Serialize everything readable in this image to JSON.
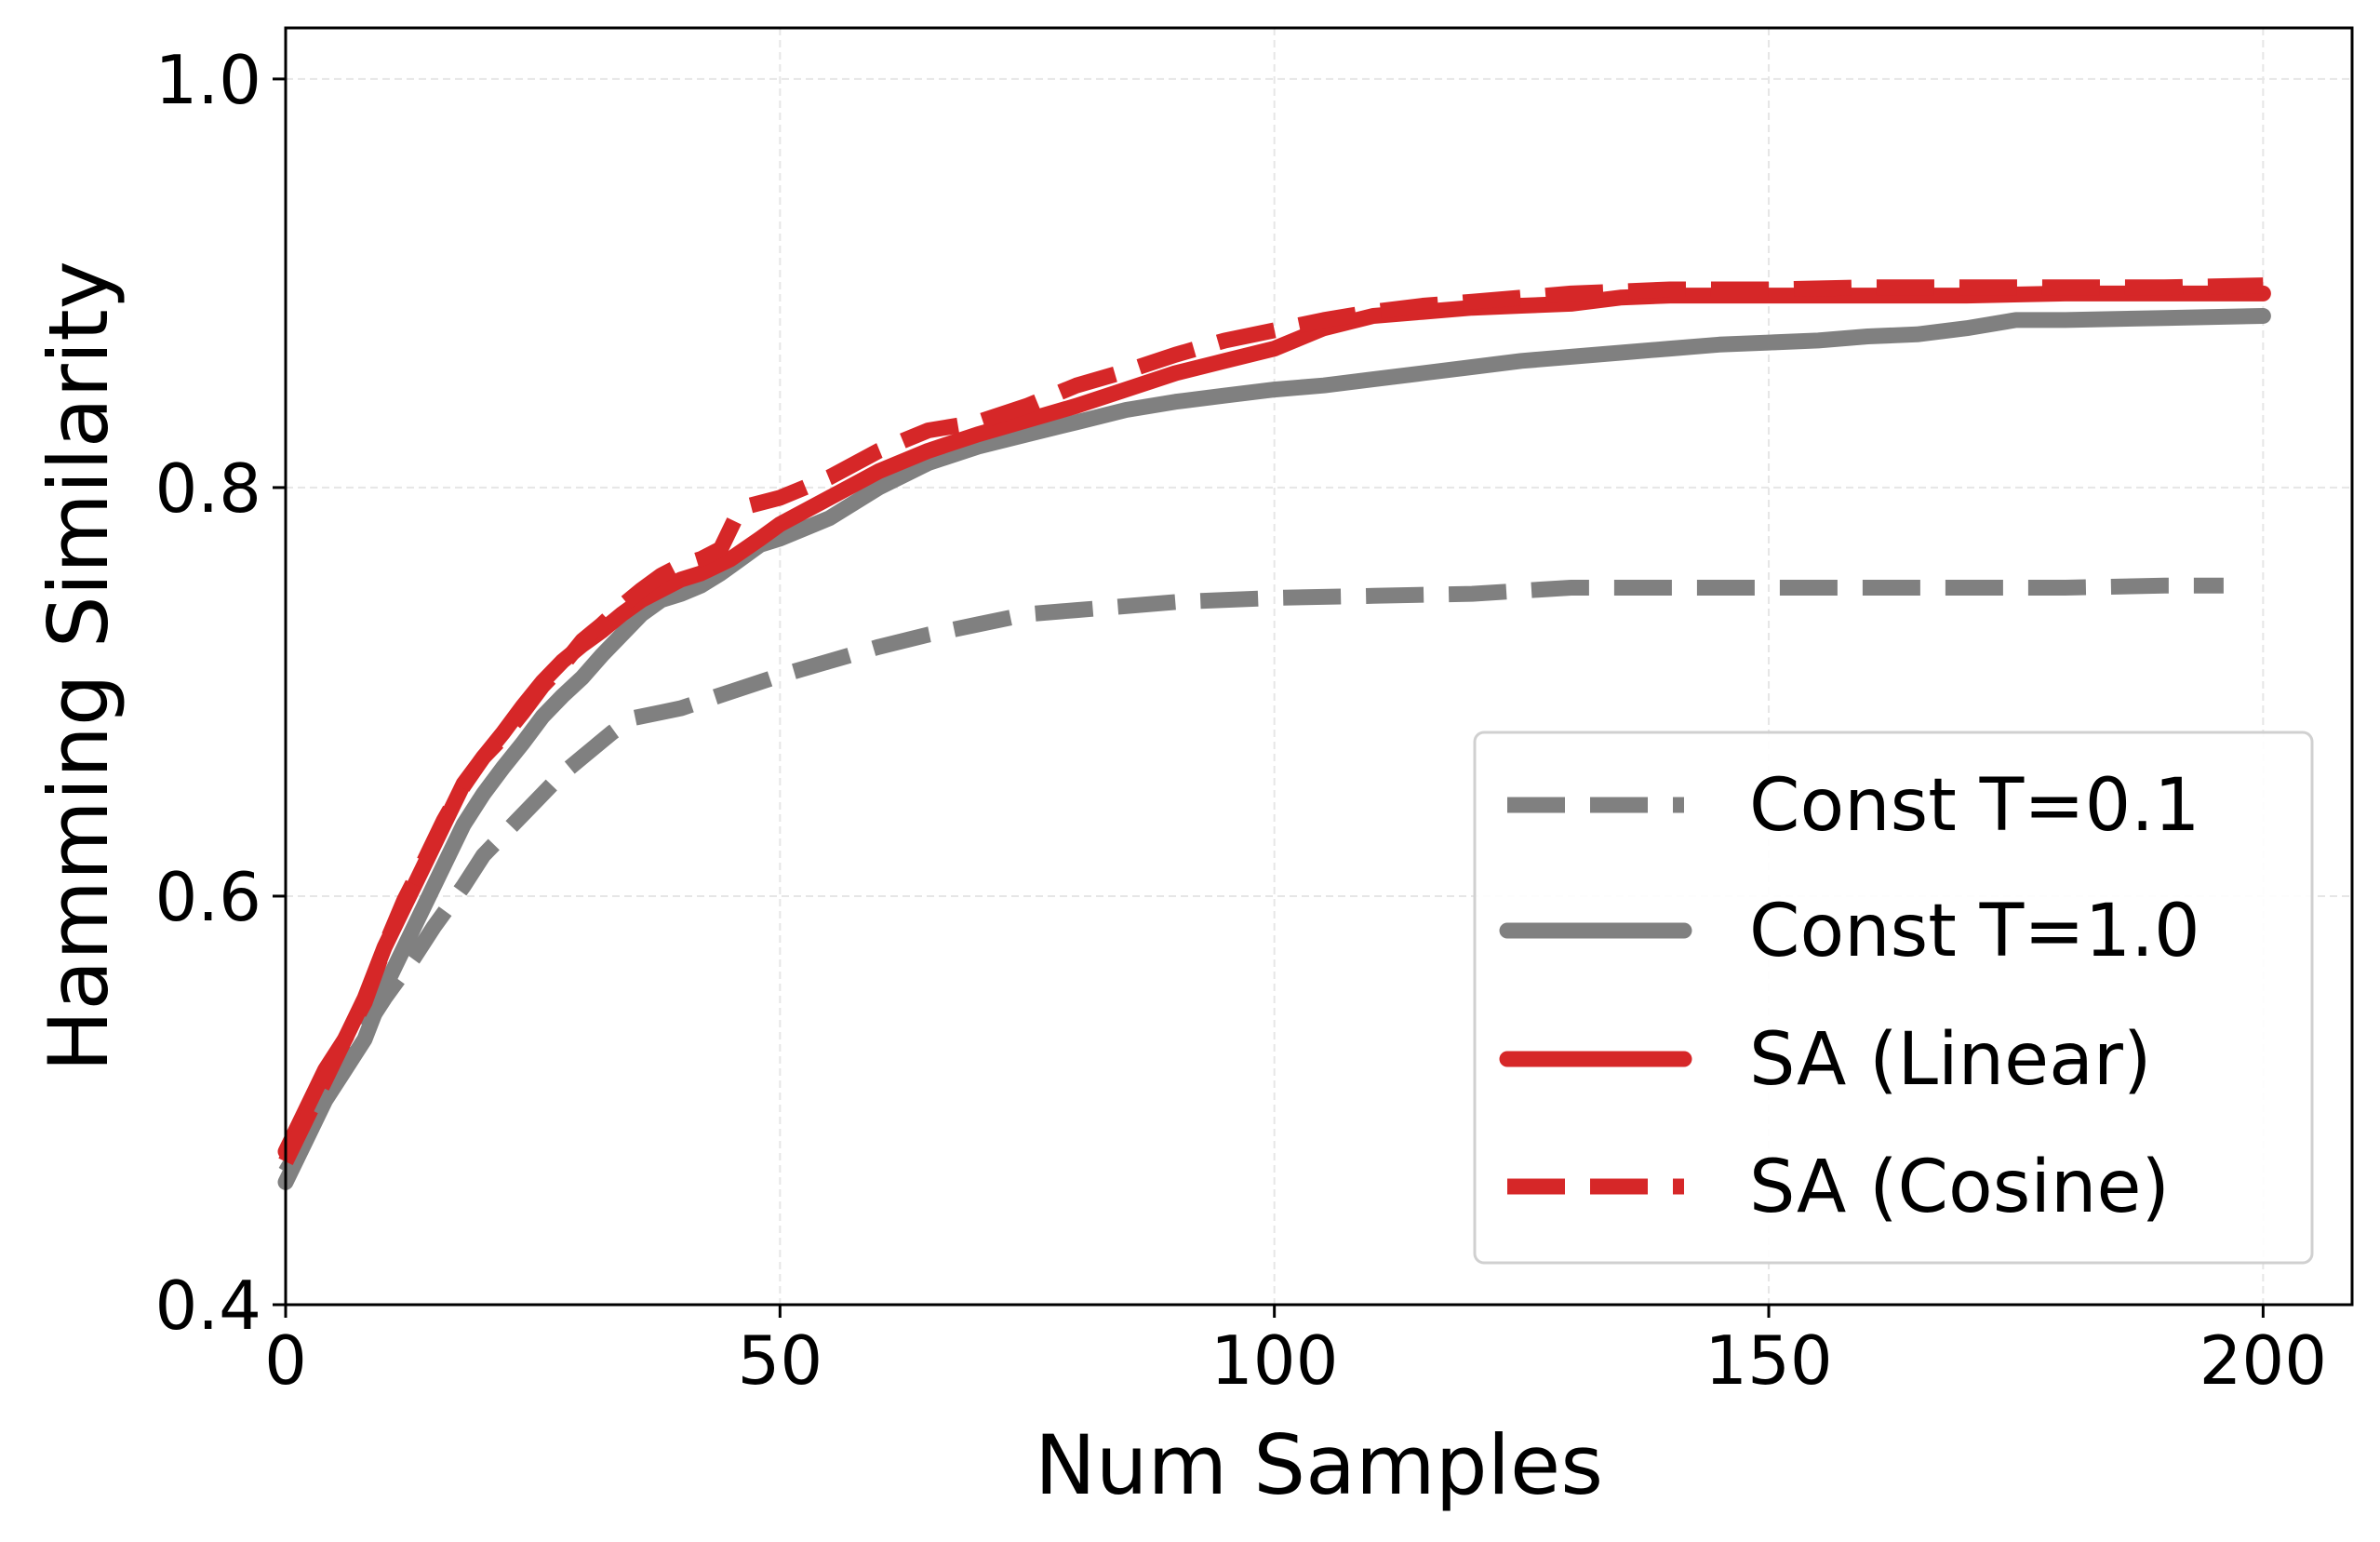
{
  "colors": {
    "gray": "#808080",
    "red": "#d62728",
    "grid": "#e6e6e6",
    "axis": "#000000",
    "legend_border": "#d0d0d0"
  },
  "chart_data": {
    "type": "line",
    "title": "",
    "xlabel": "Num Samples",
    "ylabel": "Hamming Similarity",
    "xlim": [
      0,
      209
    ],
    "ylim": [
      0.4,
      1.025
    ],
    "xticks": [
      0,
      50,
      100,
      150,
      200
    ],
    "xtick_labels": [
      "0",
      "50",
      "100",
      "150",
      "200"
    ],
    "yticks": [
      0.4,
      0.6,
      0.8,
      1.0
    ],
    "ytick_labels": [
      "0.4",
      "0.6",
      "0.8",
      "1.0"
    ],
    "grid": true,
    "legend_position": "lower-right",
    "series": [
      {
        "name": "Const T=0.1",
        "color": "gray",
        "style": "dashed",
        "points": [
          [
            0,
            0.465
          ],
          [
            3,
            0.49
          ],
          [
            5,
            0.51
          ],
          [
            8,
            0.535
          ],
          [
            10,
            0.55
          ],
          [
            13,
            0.57
          ],
          [
            15,
            0.585
          ],
          [
            18,
            0.605
          ],
          [
            20,
            0.62
          ],
          [
            23,
            0.635
          ],
          [
            25,
            0.645
          ],
          [
            28,
            0.66
          ],
          [
            30,
            0.668
          ],
          [
            33,
            0.68
          ],
          [
            35,
            0.687
          ],
          [
            38,
            0.69
          ],
          [
            40,
            0.692
          ],
          [
            45,
            0.7
          ],
          [
            50,
            0.708
          ],
          [
            55,
            0.715
          ],
          [
            60,
            0.722
          ],
          [
            65,
            0.728
          ],
          [
            70,
            0.733
          ],
          [
            75,
            0.738
          ],
          [
            80,
            0.74
          ],
          [
            90,
            0.744
          ],
          [
            100,
            0.746
          ],
          [
            110,
            0.747
          ],
          [
            120,
            0.748
          ],
          [
            130,
            0.751
          ],
          [
            140,
            0.751
          ],
          [
            150,
            0.751
          ],
          [
            160,
            0.751
          ],
          [
            170,
            0.751
          ],
          [
            180,
            0.751
          ],
          [
            190,
            0.752
          ],
          [
            196,
            0.752
          ]
        ]
      },
      {
        "name": "Const T=1.0",
        "color": "gray",
        "style": "solid",
        "points": [
          [
            0,
            0.46
          ],
          [
            2,
            0.48
          ],
          [
            4,
            0.5
          ],
          [
            6,
            0.515
          ],
          [
            8,
            0.53
          ],
          [
            10,
            0.555
          ],
          [
            12,
            0.575
          ],
          [
            14,
            0.595
          ],
          [
            16,
            0.615
          ],
          [
            18,
            0.635
          ],
          [
            20,
            0.65
          ],
          [
            22,
            0.663
          ],
          [
            24,
            0.675
          ],
          [
            26,
            0.688
          ],
          [
            28,
            0.698
          ],
          [
            30,
            0.707
          ],
          [
            32,
            0.718
          ],
          [
            34,
            0.728
          ],
          [
            36,
            0.738
          ],
          [
            38,
            0.745
          ],
          [
            40,
            0.748
          ],
          [
            42,
            0.752
          ],
          [
            44,
            0.758
          ],
          [
            46,
            0.765
          ],
          [
            48,
            0.772
          ],
          [
            50,
            0.775
          ],
          [
            55,
            0.785
          ],
          [
            60,
            0.8
          ],
          [
            65,
            0.812
          ],
          [
            70,
            0.82
          ],
          [
            75,
            0.826
          ],
          [
            80,
            0.832
          ],
          [
            85,
            0.838
          ],
          [
            90,
            0.842
          ],
          [
            95,
            0.845
          ],
          [
            100,
            0.848
          ],
          [
            105,
            0.85
          ],
          [
            110,
            0.853
          ],
          [
            115,
            0.856
          ],
          [
            120,
            0.859
          ],
          [
            125,
            0.862
          ],
          [
            130,
            0.864
          ],
          [
            135,
            0.866
          ],
          [
            140,
            0.868
          ],
          [
            145,
            0.87
          ],
          [
            150,
            0.871
          ],
          [
            155,
            0.872
          ],
          [
            160,
            0.874
          ],
          [
            165,
            0.875
          ],
          [
            170,
            0.878
          ],
          [
            175,
            0.882
          ],
          [
            180,
            0.882
          ],
          [
            190,
            0.883
          ],
          [
            200,
            0.884
          ]
        ]
      },
      {
        "name": "SA (Linear)",
        "color": "red",
        "style": "solid",
        "points": [
          [
            0,
            0.475
          ],
          [
            2,
            0.495
          ],
          [
            4,
            0.515
          ],
          [
            6,
            0.53
          ],
          [
            8,
            0.55
          ],
          [
            10,
            0.575
          ],
          [
            12,
            0.595
          ],
          [
            14,
            0.615
          ],
          [
            16,
            0.635
          ],
          [
            18,
            0.655
          ],
          [
            20,
            0.668
          ],
          [
            22,
            0.68
          ],
          [
            24,
            0.693
          ],
          [
            26,
            0.705
          ],
          [
            28,
            0.715
          ],
          [
            30,
            0.723
          ],
          [
            32,
            0.73
          ],
          [
            34,
            0.738
          ],
          [
            36,
            0.745
          ],
          [
            38,
            0.75
          ],
          [
            40,
            0.755
          ],
          [
            42,
            0.758
          ],
          [
            45,
            0.765
          ],
          [
            48,
            0.775
          ],
          [
            50,
            0.782
          ],
          [
            55,
            0.795
          ],
          [
            60,
            0.808
          ],
          [
            65,
            0.818
          ],
          [
            70,
            0.826
          ],
          [
            75,
            0.833
          ],
          [
            80,
            0.84
          ],
          [
            85,
            0.848
          ],
          [
            90,
            0.856
          ],
          [
            95,
            0.862
          ],
          [
            100,
            0.868
          ],
          [
            105,
            0.878
          ],
          [
            110,
            0.884
          ],
          [
            115,
            0.886
          ],
          [
            120,
            0.888
          ],
          [
            125,
            0.889
          ],
          [
            130,
            0.89
          ],
          [
            135,
            0.893
          ],
          [
            140,
            0.894
          ],
          [
            150,
            0.894
          ],
          [
            160,
            0.894
          ],
          [
            170,
            0.894
          ],
          [
            180,
            0.895
          ],
          [
            190,
            0.895
          ],
          [
            200,
            0.895
          ]
        ]
      },
      {
        "name": "SA (Cosine)",
        "color": "red",
        "style": "dashed",
        "points": [
          [
            0,
            0.47
          ],
          [
            2,
            0.49
          ],
          [
            4,
            0.51
          ],
          [
            6,
            0.53
          ],
          [
            8,
            0.548
          ],
          [
            10,
            0.575
          ],
          [
            12,
            0.598
          ],
          [
            14,
            0.617
          ],
          [
            16,
            0.637
          ],
          [
            18,
            0.654
          ],
          [
            20,
            0.668
          ],
          [
            22,
            0.678
          ],
          [
            24,
            0.69
          ],
          [
            26,
            0.703
          ],
          [
            28,
            0.713
          ],
          [
            30,
            0.725
          ],
          [
            32,
            0.733
          ],
          [
            34,
            0.742
          ],
          [
            36,
            0.75
          ],
          [
            38,
            0.757
          ],
          [
            40,
            0.762
          ],
          [
            42,
            0.765
          ],
          [
            44,
            0.77
          ],
          [
            46,
            0.79
          ],
          [
            50,
            0.795
          ],
          [
            55,
            0.805
          ],
          [
            60,
            0.818
          ],
          [
            65,
            0.828
          ],
          [
            70,
            0.832
          ],
          [
            75,
            0.84
          ],
          [
            80,
            0.85
          ],
          [
            85,
            0.857
          ],
          [
            90,
            0.865
          ],
          [
            95,
            0.872
          ],
          [
            100,
            0.877
          ],
          [
            105,
            0.882
          ],
          [
            110,
            0.886
          ],
          [
            115,
            0.889
          ],
          [
            120,
            0.891
          ],
          [
            125,
            0.893
          ],
          [
            130,
            0.895
          ],
          [
            135,
            0.896
          ],
          [
            140,
            0.897
          ],
          [
            150,
            0.897
          ],
          [
            160,
            0.898
          ],
          [
            170,
            0.898
          ],
          [
            180,
            0.898
          ],
          [
            190,
            0.898
          ],
          [
            200,
            0.899
          ]
        ]
      }
    ]
  }
}
